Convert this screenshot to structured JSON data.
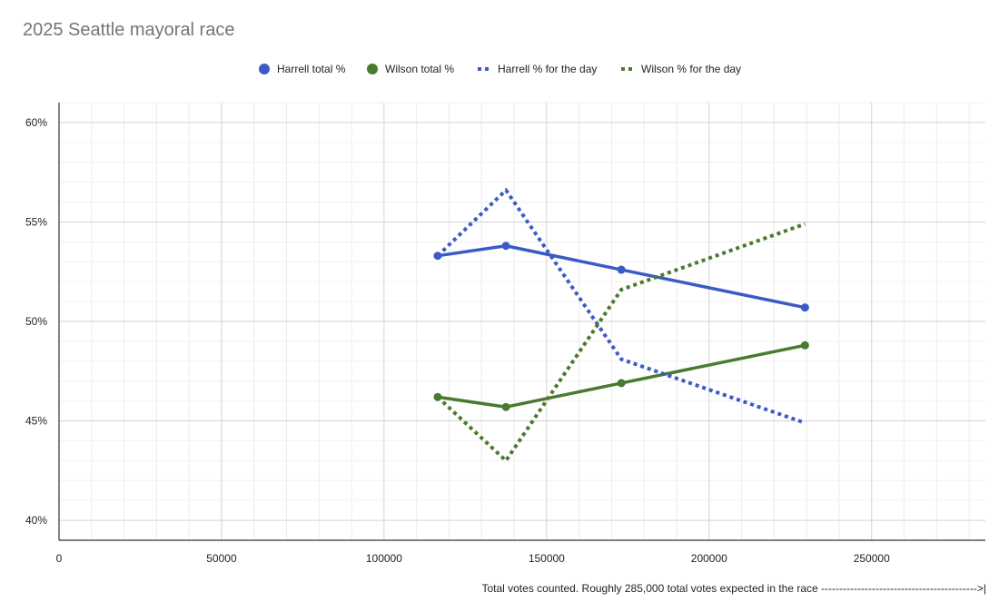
{
  "chart_data": {
    "type": "line",
    "title": "2025 Seattle mayoral race",
    "xlabel": "Total votes counted. Roughly 285,000 total votes expected in the race ------------------------------------------->|",
    "ylabel": "",
    "xlim": [
      0,
      285000
    ],
    "ylim": [
      39,
      61
    ],
    "x_ticks": [
      0,
      50000,
      100000,
      150000,
      200000,
      250000
    ],
    "x_tick_labels": [
      "0",
      "50000",
      "100000",
      "150000",
      "200000",
      "250000"
    ],
    "y_ticks": [
      40,
      45,
      50,
      55,
      60
    ],
    "y_tick_labels": [
      "40%",
      "45%",
      "50%",
      "55%",
      "60%"
    ],
    "grid": true,
    "legend_position": "top",
    "series": [
      {
        "name": "Harrell total %",
        "color": "#3a5bc7",
        "style": "solid-markers",
        "x": [
          116500,
          137500,
          173000,
          229500
        ],
        "y": [
          53.3,
          53.8,
          52.6,
          50.7
        ]
      },
      {
        "name": "Wilson total %",
        "color": "#4a7a2f",
        "style": "solid-markers",
        "x": [
          116500,
          137500,
          173000,
          229500
        ],
        "y": [
          46.2,
          45.7,
          46.9,
          48.8
        ]
      },
      {
        "name": "Harrell % for the day",
        "color": "#3a5bc7",
        "style": "dotted",
        "x": [
          116500,
          137500,
          173000,
          229500
        ],
        "y": [
          53.3,
          56.6,
          48.1,
          44.9
        ]
      },
      {
        "name": "Wilson % for the day",
        "color": "#4a7a2f",
        "style": "dotted",
        "x": [
          116500,
          137500,
          173000,
          229500
        ],
        "y": [
          46.2,
          43.0,
          51.6,
          54.9
        ]
      }
    ]
  }
}
